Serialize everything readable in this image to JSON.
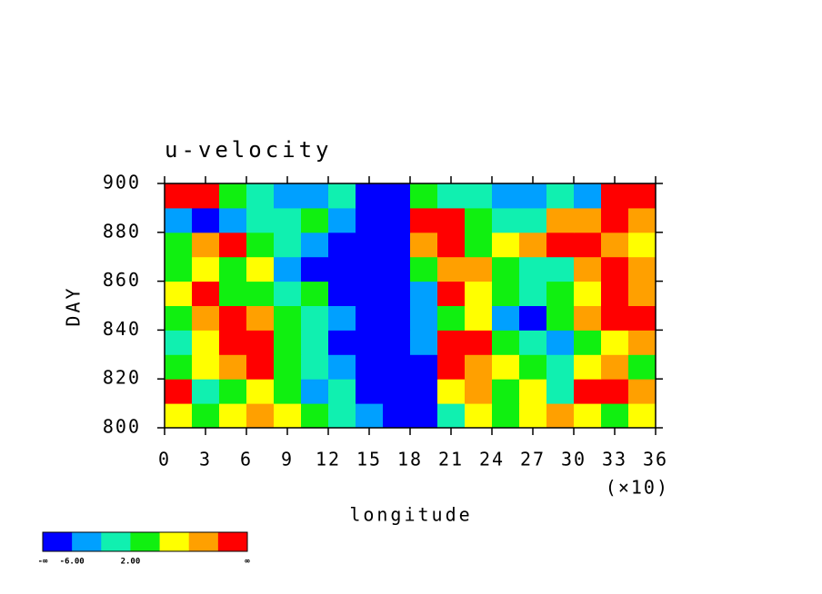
{
  "chart_data": {
    "type": "heatmap",
    "title": "u-velocity",
    "x_label": "longitude",
    "x_multiplier_label": "(×10)",
    "y_label": "DAY",
    "xlim": [
      0,
      36
    ],
    "xticks": [
      0,
      3,
      6,
      9,
      12,
      15,
      18,
      21,
      24,
      27,
      30,
      33,
      36
    ],
    "ylim": [
      800,
      900
    ],
    "yticks": [
      800,
      820,
      840,
      860,
      880,
      900
    ],
    "x": [
      1,
      3,
      5,
      7,
      9,
      11,
      13,
      15,
      17,
      19,
      21,
      23,
      25,
      27,
      29,
      31,
      33,
      35
    ],
    "y": [
      805,
      815,
      825,
      835,
      845,
      855,
      865,
      875,
      885,
      895
    ],
    "z": [
      [
        4,
        0,
        4,
        8,
        4,
        0,
        -4,
        -8,
        -12,
        -12,
        -4,
        4,
        0,
        4,
        8,
        4,
        0,
        4
      ],
      [
        12,
        -4,
        0,
        4,
        0,
        -8,
        -4,
        -12,
        -12,
        -12,
        4,
        8,
        0,
        4,
        -4,
        12,
        12,
        8
      ],
      [
        0,
        4,
        8,
        12,
        0,
        -4,
        -8,
        -12,
        -12,
        -12,
        12,
        8,
        4,
        0,
        -4,
        4,
        8,
        0
      ],
      [
        -4,
        4,
        12,
        12,
        0,
        -4,
        -12,
        -12,
        -12,
        -8,
        12,
        12,
        0,
        -4,
        -8,
        0,
        4,
        8
      ],
      [
        0,
        8,
        12,
        8,
        0,
        -4,
        -8,
        -12,
        -12,
        -8,
        0,
        4,
        -8,
        -12,
        0,
        8,
        12,
        12
      ],
      [
        4,
        12,
        0,
        0,
        -4,
        0,
        -12,
        -12,
        -12,
        -8,
        12,
        4,
        0,
        -4,
        0,
        4,
        12,
        8
      ],
      [
        0,
        4,
        0,
        4,
        -8,
        -12,
        -12,
        -12,
        -12,
        0,
        8,
        8,
        0,
        -4,
        -4,
        8,
        12,
        8
      ],
      [
        0,
        8,
        12,
        0,
        -4,
        -8,
        -12,
        -12,
        -12,
        8,
        12,
        0,
        4,
        8,
        12,
        12,
        8,
        4
      ],
      [
        -8,
        -12,
        -8,
        -4,
        -4,
        0,
        -8,
        -12,
        -12,
        12,
        12,
        0,
        -4,
        -4,
        8,
        8,
        12,
        8
      ],
      [
        12,
        12,
        0,
        -4,
        -8,
        -8,
        -4,
        -12,
        -12,
        0,
        -4,
        -4,
        -8,
        -8,
        -4,
        -8,
        12,
        12
      ]
    ],
    "colorbar": {
      "levels": [
        -10,
        -6,
        -2,
        2,
        6,
        10
      ],
      "colors": [
        "#0000ff",
        "#00a0ff",
        "#10f0b0",
        "#10f010",
        "#ffff00",
        "#ffa000",
        "#ff0000"
      ],
      "ticks": [
        {
          "value": null,
          "label": "-∞"
        },
        {
          "value": -6,
          "label": "-6.00"
        },
        {
          "value": 2,
          "label": "2.00"
        },
        {
          "value": null,
          "label": "∞"
        }
      ]
    }
  }
}
